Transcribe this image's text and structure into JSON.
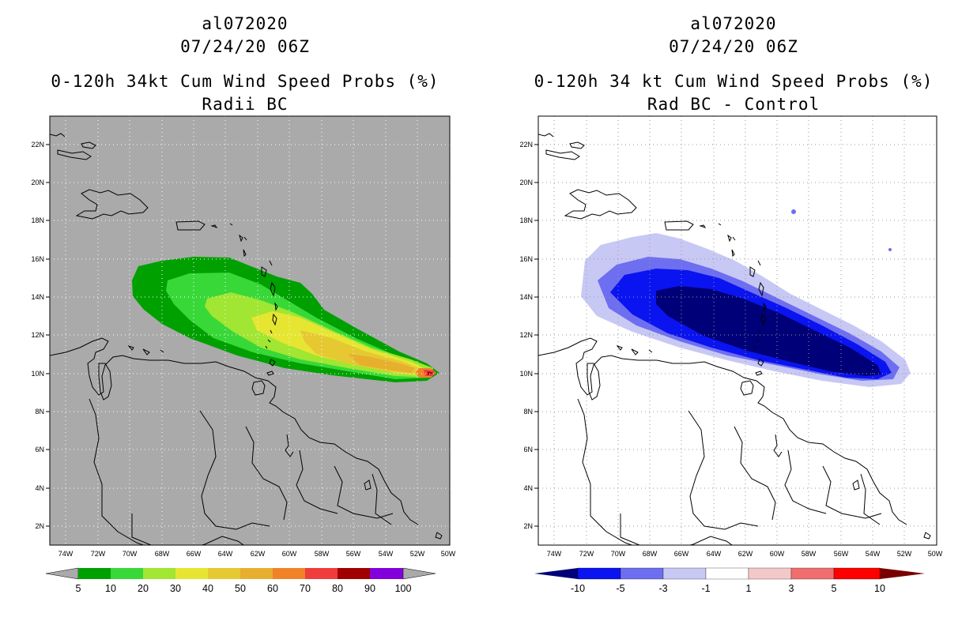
{
  "left_panel": {
    "storm_id": "al072020",
    "datetime": "07/24/20 06Z",
    "title": "0-120h 34kt Cum Wind Speed Probs (%)",
    "subtitle": "Radii BC",
    "lat_labels": [
      "22N",
      "20N",
      "18N",
      "16N",
      "14N",
      "12N",
      "10N",
      "8N",
      "6N",
      "4N",
      "2N"
    ],
    "lon_labels": [
      "74W",
      "72W",
      "70W",
      "68W",
      "66W",
      "64W",
      "62W",
      "60W",
      "58W",
      "56W",
      "54W",
      "52W",
      "50W"
    ],
    "colorbar": {
      "labels": [
        "5",
        "10",
        "20",
        "30",
        "40",
        "50",
        "60",
        "70",
        "80",
        "90",
        "100"
      ],
      "colors": [
        "#00a000",
        "#38d838",
        "#a0e632",
        "#e6e632",
        "#e6c832",
        "#e6af2d",
        "#f08228",
        "#f03c3c",
        "#a00000",
        "#8200dc"
      ]
    }
  },
  "right_panel": {
    "storm_id": "al072020",
    "datetime": "07/24/20 06Z",
    "title": "0-120h 34 kt Cum Wind Speed Probs (%)",
    "subtitle": "Rad BC - Control",
    "lat_labels": [
      "22N",
      "20N",
      "18N",
      "16N",
      "14N",
      "12N",
      "10N",
      "8N",
      "6N",
      "4N",
      "2N"
    ],
    "lon_labels": [
      "74W",
      "72W",
      "70W",
      "68W",
      "66W",
      "64W",
      "62W",
      "60W",
      "58W",
      "56W",
      "54W",
      "52W",
      "50W"
    ],
    "colorbar": {
      "labels": [
        "-10",
        "-5",
        "-3",
        "-1",
        "1",
        "3",
        "5",
        "10"
      ],
      "colors": [
        "#000078",
        "#0a14f0",
        "#6e6ef0",
        "#c8c8f5",
        "#ffffff",
        "#f5c8c8",
        "#f06e6e",
        "#ff0000",
        "#780000"
      ]
    }
  },
  "map": {
    "lon_range": [
      -75,
      -50
    ],
    "lat_range": [
      1,
      23.5
    ]
  }
}
